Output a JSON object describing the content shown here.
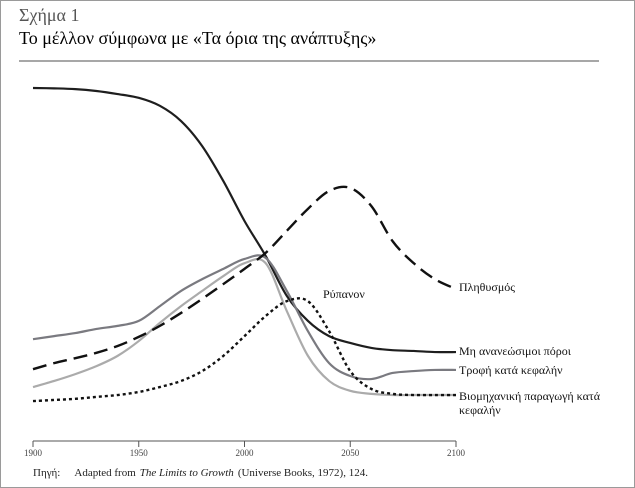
{
  "chart_data": {
    "type": "line",
    "label": "Σχήμα 1",
    "title": "Το μέλλον σύμφωνα με «Τα όρια της ανάπτυξης»",
    "x": [
      1900,
      1910,
      1920,
      1930,
      1940,
      1950,
      1960,
      1970,
      1980,
      1990,
      2000,
      2010,
      2020,
      2030,
      2040,
      2050,
      2060,
      2070,
      2080,
      2090,
      2100
    ],
    "xlim": [
      1900,
      2100
    ],
    "xticks": [
      1900,
      1950,
      2000,
      2050,
      2100
    ],
    "ylim": [
      0,
      100
    ],
    "series": [
      {
        "name": "Μη ανανεώσιμοι πόροι",
        "color": "#1e1e1e",
        "style": "solid",
        "values": [
          92.9,
          92.8,
          92.6,
          92.1,
          91.3,
          90.3,
          88.2,
          84.2,
          77.6,
          68.4,
          57.9,
          48.7,
          38.2,
          31.6,
          27.6,
          25.8,
          24.5,
          23.9,
          23.7,
          23.4,
          23.4
        ]
      },
      {
        "name": "Τροφή κατά κεφαλήν",
        "color": "#7a7a80",
        "style": "solid",
        "values": [
          26.8,
          27.6,
          28.4,
          29.5,
          30.3,
          31.6,
          35.5,
          39.5,
          42.6,
          45.3,
          47.9,
          48.2,
          39.5,
          28.9,
          20.5,
          17.1,
          16.3,
          17.9,
          18.4,
          18.7,
          18.7
        ]
      },
      {
        "name": "Βιομηχανική παραγωγή κατά κεφαλήν",
        "color": "#ababab",
        "style": "solid",
        "values": [
          14.2,
          15.8,
          17.6,
          19.7,
          22.4,
          26.3,
          31.1,
          35.5,
          39.5,
          43.4,
          46.8,
          46.8,
          34.2,
          22.4,
          15.8,
          13.2,
          12.4,
          12.1,
          12.1,
          12.1,
          12.1
        ]
      },
      {
        "name": "Πληθυσμός",
        "color": "#111111",
        "style": "dashed",
        "values": [
          18.9,
          20.5,
          21.8,
          23.2,
          25.0,
          27.4,
          30.3,
          33.7,
          37.4,
          41.3,
          45.3,
          49.5,
          55.3,
          61.1,
          65.8,
          66.6,
          61.8,
          52.6,
          46.8,
          42.6,
          40.0
        ]
      },
      {
        "name": "Ρύπανον",
        "color": "#111111",
        "style": "dotted",
        "values": [
          10.5,
          10.8,
          11.1,
          11.6,
          12.1,
          12.9,
          14.2,
          15.8,
          18.4,
          22.4,
          27.6,
          32.9,
          36.8,
          36.8,
          28.9,
          18.4,
          13.7,
          12.4,
          12.1,
          12.1,
          12.1
        ]
      }
    ],
    "source": {
      "label": "Πηγή:",
      "prefix": "Adapted from",
      "title": "The Limits to Growth",
      "suffix": "(Universe Books, 1972), 124."
    }
  }
}
